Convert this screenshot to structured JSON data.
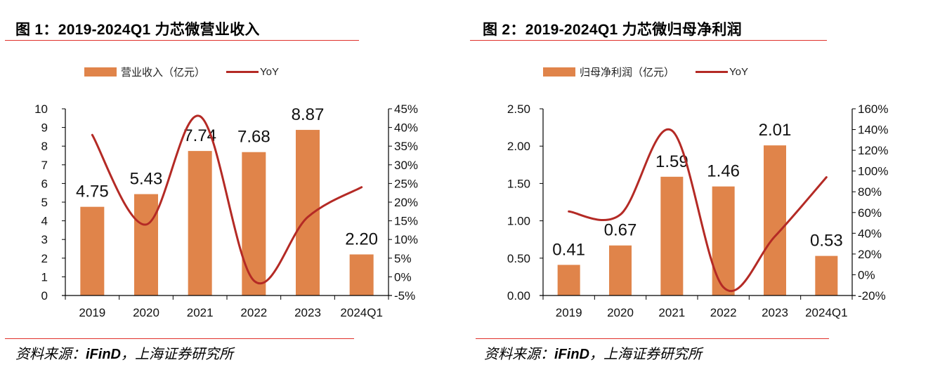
{
  "panels": [
    {
      "figure_title": "图 1：2019-2024Q1 力芯微营业收入",
      "legend": {
        "bar_label": "营业收入（亿元）",
        "line_label": "YoY"
      },
      "source_prefix": "资料来源：",
      "source_bold": "iFinD",
      "source_suffix": "，上海证券研究所"
    },
    {
      "figure_title": "图 2：2019-2024Q1 力芯微归母净利润",
      "legend": {
        "bar_label": "归母净利润（亿元）",
        "line_label": "YoY"
      },
      "source_prefix": "资料来源：",
      "source_bold": "iFinD",
      "source_suffix": "，上海证券研究所"
    }
  ],
  "colors": {
    "bar": "#E0844A",
    "line": "#B42A25",
    "rule": "#E0302A",
    "axis": "#000000"
  },
  "chart_data": [
    {
      "type": "bar+line",
      "title": "2019-2024Q1 力芯微营业收入",
      "categories": [
        "2019",
        "2020",
        "2021",
        "2022",
        "2023",
        "2024Q1"
      ],
      "series": [
        {
          "name": "营业收入（亿元）",
          "type": "bar",
          "axis": "left",
          "values": [
            4.75,
            5.43,
            7.74,
            7.68,
            8.87,
            2.2
          ],
          "labels": [
            "4.75",
            "5.43",
            "7.74",
            "7.68",
            "8.87",
            "2.20"
          ]
        },
        {
          "name": "YoY",
          "type": "line",
          "axis": "right",
          "values": [
            38,
            14,
            43,
            -1,
            16,
            24
          ],
          "unit": "%"
        }
      ],
      "y_left": {
        "min": 0,
        "max": 10,
        "step": 1,
        "ticks": [
          "0",
          "1",
          "2",
          "3",
          "4",
          "5",
          "6",
          "7",
          "8",
          "9",
          "10"
        ]
      },
      "y_right": {
        "min": -5,
        "max": 45,
        "step": 5,
        "ticks": [
          "-5%",
          "0%",
          "5%",
          "10%",
          "15%",
          "20%",
          "25%",
          "30%",
          "35%",
          "40%",
          "45%"
        ]
      },
      "grid": false,
      "legend_position": "top"
    },
    {
      "type": "bar+line",
      "title": "2019-2024Q1 力芯微归母净利润",
      "categories": [
        "2019",
        "2020",
        "2021",
        "2022",
        "2023",
        "2024Q1"
      ],
      "series": [
        {
          "name": "归母净利润（亿元）",
          "type": "bar",
          "axis": "left",
          "values": [
            0.41,
            0.67,
            1.59,
            1.46,
            2.01,
            0.53
          ],
          "labels": [
            "0.41",
            "0.67",
            "1.59",
            "1.46",
            "2.01",
            "0.53"
          ]
        },
        {
          "name": "YoY",
          "type": "line",
          "axis": "right",
          "values": [
            61,
            58,
            139,
            -12,
            37,
            94
          ],
          "unit": "%"
        }
      ],
      "y_left": {
        "min": 0,
        "max": 2.5,
        "step": 0.5,
        "ticks": [
          "0.00",
          "0.50",
          "1.00",
          "1.50",
          "2.00",
          "2.50"
        ]
      },
      "y_right": {
        "min": -20,
        "max": 160,
        "step": 20,
        "ticks": [
          "-20%",
          "0%",
          "20%",
          "40%",
          "60%",
          "80%",
          "100%",
          "120%",
          "140%",
          "160%"
        ]
      },
      "grid": false,
      "legend_position": "top"
    }
  ]
}
